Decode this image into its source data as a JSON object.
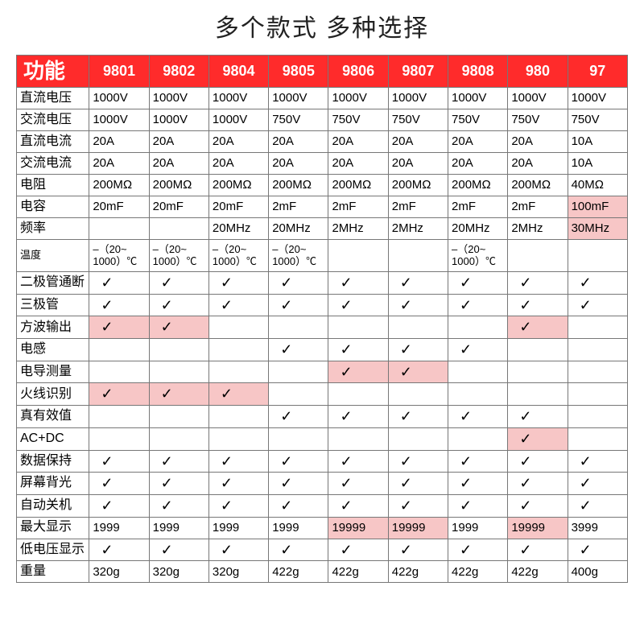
{
  "title": "多个款式 多种选择",
  "header_first": "功能",
  "models": [
    "9801",
    "9802",
    "9804",
    "9805",
    "9806",
    "9807",
    "9808",
    "980",
    "97"
  ],
  "check_glyph": "✓",
  "colors": {
    "header_bg": "#ff2b2b",
    "header_fg": "#ffffff",
    "border": "#777777",
    "highlight_bg": "#f7c6c6",
    "text": "#222222"
  },
  "rows": [
    {
      "label": "直流电压",
      "cells": [
        {
          "v": "1000V"
        },
        {
          "v": "1000V"
        },
        {
          "v": "1000V"
        },
        {
          "v": "1000V"
        },
        {
          "v": "1000V"
        },
        {
          "v": "1000V"
        },
        {
          "v": "1000V"
        },
        {
          "v": "1000V"
        },
        {
          "v": "1000V"
        }
      ]
    },
    {
      "label": "交流电压",
      "cells": [
        {
          "v": "1000V"
        },
        {
          "v": "1000V"
        },
        {
          "v": "1000V"
        },
        {
          "v": "750V"
        },
        {
          "v": "750V"
        },
        {
          "v": "750V"
        },
        {
          "v": "750V"
        },
        {
          "v": "750V"
        },
        {
          "v": "750V"
        }
      ]
    },
    {
      "label": "直流电流",
      "cells": [
        {
          "v": "20A"
        },
        {
          "v": "20A"
        },
        {
          "v": "20A"
        },
        {
          "v": "20A"
        },
        {
          "v": "20A"
        },
        {
          "v": "20A"
        },
        {
          "v": "20A"
        },
        {
          "v": "20A"
        },
        {
          "v": "10A"
        }
      ]
    },
    {
      "label": "交流电流",
      "cells": [
        {
          "v": "20A"
        },
        {
          "v": "20A"
        },
        {
          "v": "20A"
        },
        {
          "v": "20A"
        },
        {
          "v": "20A"
        },
        {
          "v": "20A"
        },
        {
          "v": "20A"
        },
        {
          "v": "20A"
        },
        {
          "v": "10A"
        }
      ]
    },
    {
      "label": "电阻",
      "cells": [
        {
          "v": "200MΩ"
        },
        {
          "v": "200MΩ"
        },
        {
          "v": "200MΩ"
        },
        {
          "v": "200MΩ"
        },
        {
          "v": "200MΩ"
        },
        {
          "v": "200MΩ"
        },
        {
          "v": "200MΩ"
        },
        {
          "v": "200MΩ"
        },
        {
          "v": "40MΩ"
        }
      ]
    },
    {
      "label": "电容",
      "cells": [
        {
          "v": "20mF"
        },
        {
          "v": "20mF"
        },
        {
          "v": "20mF"
        },
        {
          "v": "2mF"
        },
        {
          "v": "2mF"
        },
        {
          "v": "2mF"
        },
        {
          "v": "2mF"
        },
        {
          "v": "2mF"
        },
        {
          "v": "100mF",
          "hl": true
        }
      ]
    },
    {
      "label": "频率",
      "cells": [
        {
          "v": ""
        },
        {
          "v": ""
        },
        {
          "v": "20MHz"
        },
        {
          "v": "20MHz"
        },
        {
          "v": "2MHz"
        },
        {
          "v": "2MHz"
        },
        {
          "v": "20MHz"
        },
        {
          "v": "2MHz"
        },
        {
          "v": "30MHz",
          "hl": true
        }
      ]
    },
    {
      "label": "温度",
      "tall": true,
      "cells": [
        {
          "v": "–（20~ 1000）℃"
        },
        {
          "v": "–（20~ 1000）℃"
        },
        {
          "v": "–（20~ 1000）℃"
        },
        {
          "v": "–（20~ 1000）℃"
        },
        {
          "v": ""
        },
        {
          "v": ""
        },
        {
          "v": "–（20~ 1000）℃"
        },
        {
          "v": ""
        },
        {
          "v": ""
        }
      ]
    },
    {
      "label": "二极管通断",
      "cells": [
        {
          "v": "✓"
        },
        {
          "v": "✓"
        },
        {
          "v": "✓"
        },
        {
          "v": "✓"
        },
        {
          "v": "✓"
        },
        {
          "v": "✓"
        },
        {
          "v": "✓"
        },
        {
          "v": "✓"
        },
        {
          "v": "✓"
        }
      ]
    },
    {
      "label": "三极管",
      "cells": [
        {
          "v": "✓"
        },
        {
          "v": "✓"
        },
        {
          "v": "✓"
        },
        {
          "v": "✓"
        },
        {
          "v": "✓"
        },
        {
          "v": "✓"
        },
        {
          "v": "✓"
        },
        {
          "v": "✓"
        },
        {
          "v": "✓"
        }
      ]
    },
    {
      "label": "方波输出",
      "cells": [
        {
          "v": "✓",
          "hl": true
        },
        {
          "v": "✓",
          "hl": true
        },
        {
          "v": ""
        },
        {
          "v": ""
        },
        {
          "v": ""
        },
        {
          "v": ""
        },
        {
          "v": ""
        },
        {
          "v": "✓",
          "hl": true
        },
        {
          "v": ""
        }
      ]
    },
    {
      "label": "电感",
      "cells": [
        {
          "v": ""
        },
        {
          "v": ""
        },
        {
          "v": ""
        },
        {
          "v": "✓"
        },
        {
          "v": "✓"
        },
        {
          "v": "✓"
        },
        {
          "v": "✓"
        },
        {
          "v": ""
        },
        {
          "v": ""
        }
      ]
    },
    {
      "label": "电导测量",
      "cells": [
        {
          "v": ""
        },
        {
          "v": ""
        },
        {
          "v": ""
        },
        {
          "v": ""
        },
        {
          "v": "✓",
          "hl": true
        },
        {
          "v": "✓",
          "hl": true
        },
        {
          "v": ""
        },
        {
          "v": ""
        },
        {
          "v": ""
        }
      ]
    },
    {
      "label": "火线识别",
      "cells": [
        {
          "v": "✓",
          "hl": true
        },
        {
          "v": "✓",
          "hl": true
        },
        {
          "v": "✓",
          "hl": true
        },
        {
          "v": ""
        },
        {
          "v": ""
        },
        {
          "v": ""
        },
        {
          "v": ""
        },
        {
          "v": ""
        },
        {
          "v": ""
        }
      ]
    },
    {
      "label": "真有效值",
      "cells": [
        {
          "v": ""
        },
        {
          "v": ""
        },
        {
          "v": ""
        },
        {
          "v": "✓"
        },
        {
          "v": "✓"
        },
        {
          "v": "✓"
        },
        {
          "v": "✓"
        },
        {
          "v": "✓"
        },
        {
          "v": ""
        }
      ]
    },
    {
      "label": "AC+DC",
      "cells": [
        {
          "v": ""
        },
        {
          "v": ""
        },
        {
          "v": ""
        },
        {
          "v": ""
        },
        {
          "v": ""
        },
        {
          "v": ""
        },
        {
          "v": ""
        },
        {
          "v": "✓",
          "hl": true
        },
        {
          "v": ""
        }
      ]
    },
    {
      "label": "数据保持",
      "cells": [
        {
          "v": "✓"
        },
        {
          "v": "✓"
        },
        {
          "v": "✓"
        },
        {
          "v": "✓"
        },
        {
          "v": "✓"
        },
        {
          "v": "✓"
        },
        {
          "v": "✓"
        },
        {
          "v": "✓"
        },
        {
          "v": "✓"
        }
      ]
    },
    {
      "label": "屏幕背光",
      "cells": [
        {
          "v": "✓"
        },
        {
          "v": "✓"
        },
        {
          "v": "✓"
        },
        {
          "v": "✓"
        },
        {
          "v": "✓"
        },
        {
          "v": "✓"
        },
        {
          "v": "✓"
        },
        {
          "v": "✓"
        },
        {
          "v": "✓"
        }
      ]
    },
    {
      "label": "自动关机",
      "cells": [
        {
          "v": "✓"
        },
        {
          "v": "✓"
        },
        {
          "v": "✓"
        },
        {
          "v": "✓"
        },
        {
          "v": "✓"
        },
        {
          "v": "✓"
        },
        {
          "v": "✓"
        },
        {
          "v": "✓"
        },
        {
          "v": "✓"
        }
      ]
    },
    {
      "label": "最大显示",
      "cells": [
        {
          "v": "1999"
        },
        {
          "v": "1999"
        },
        {
          "v": "1999"
        },
        {
          "v": "1999"
        },
        {
          "v": "19999",
          "hl": true
        },
        {
          "v": "19999",
          "hl": true
        },
        {
          "v": "1999"
        },
        {
          "v": "19999",
          "hl": true
        },
        {
          "v": "3999"
        }
      ]
    },
    {
      "label": "低电压显示",
      "cells": [
        {
          "v": "✓"
        },
        {
          "v": "✓"
        },
        {
          "v": "✓"
        },
        {
          "v": "✓"
        },
        {
          "v": "✓"
        },
        {
          "v": "✓"
        },
        {
          "v": "✓"
        },
        {
          "v": "✓"
        },
        {
          "v": "✓"
        }
      ]
    },
    {
      "label": "重量",
      "cells": [
        {
          "v": "320g"
        },
        {
          "v": "320g"
        },
        {
          "v": "320g"
        },
        {
          "v": "422g"
        },
        {
          "v": "422g"
        },
        {
          "v": "422g"
        },
        {
          "v": "422g"
        },
        {
          "v": "422g"
        },
        {
          "v": "400g"
        }
      ]
    }
  ]
}
